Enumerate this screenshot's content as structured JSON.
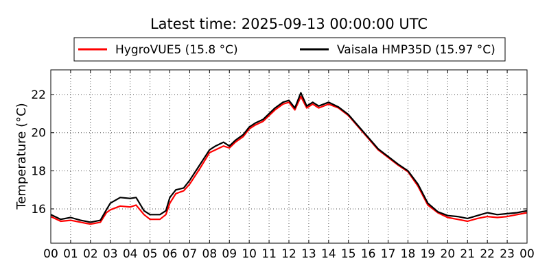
{
  "chart_data": {
    "type": "line",
    "title": "Latest time: 2025-09-13 00:00:00 UTC",
    "xlabel": "",
    "ylabel": "Temperature (°C)",
    "xlim": [
      0,
      24
    ],
    "ylim": [
      14.2,
      23.3
    ],
    "x_ticks": [
      "00",
      "01",
      "02",
      "03",
      "04",
      "05",
      "06",
      "07",
      "08",
      "09",
      "10",
      "11",
      "12",
      "13",
      "14",
      "15",
      "16",
      "17",
      "18",
      "19",
      "20",
      "21",
      "22",
      "23",
      "00"
    ],
    "y_ticks": [
      16,
      18,
      20,
      22
    ],
    "grid": true,
    "legend_position": "top-center",
    "series": [
      {
        "name": "HygroVUE5 (15.8 °C)",
        "color": "#ff0000",
        "x": [
          0,
          0.5,
          1,
          1.5,
          2,
          2.5,
          2.8,
          3,
          3.5,
          4,
          4.3,
          4.7,
          5,
          5.5,
          5.8,
          6,
          6.3,
          6.7,
          7,
          7.5,
          8,
          8.3,
          8.7,
          9,
          9.3,
          9.7,
          10,
          10.3,
          10.7,
          11,
          11.3,
          11.7,
          12,
          12.3,
          12.6,
          12.9,
          13.2,
          13.5,
          14,
          14.5,
          15,
          15.5,
          16,
          16.5,
          17,
          17.5,
          18,
          18.5,
          19,
          19.5,
          20,
          20.5,
          21,
          21.5,
          22,
          22.5,
          23,
          23.5,
          24
        ],
        "y": [
          15.6,
          15.35,
          15.4,
          15.3,
          15.2,
          15.3,
          15.8,
          15.95,
          16.15,
          16.1,
          16.2,
          15.7,
          15.45,
          15.45,
          15.7,
          16.3,
          16.8,
          16.95,
          17.3,
          18.1,
          18.95,
          19.1,
          19.3,
          19.2,
          19.5,
          19.8,
          20.2,
          20.4,
          20.6,
          20.9,
          21.2,
          21.5,
          21.6,
          21.2,
          21.9,
          21.3,
          21.5,
          21.3,
          21.5,
          21.3,
          20.9,
          20.3,
          19.7,
          19.1,
          18.7,
          18.3,
          17.95,
          17.2,
          16.2,
          15.8,
          15.55,
          15.45,
          15.35,
          15.5,
          15.6,
          15.55,
          15.6,
          15.7,
          15.8
        ]
      },
      {
        "name": "Vaisala HMP35D (15.97 °C)",
        "color": "#000000",
        "x": [
          0,
          0.5,
          1,
          1.5,
          2,
          2.5,
          2.8,
          3,
          3.5,
          4,
          4.3,
          4.7,
          5,
          5.5,
          5.8,
          6,
          6.3,
          6.7,
          7,
          7.5,
          8,
          8.3,
          8.7,
          9,
          9.3,
          9.7,
          10,
          10.3,
          10.7,
          11,
          11.3,
          11.7,
          12,
          12.3,
          12.6,
          12.9,
          13.2,
          13.5,
          14,
          14.5,
          15,
          15.5,
          16,
          16.5,
          17,
          17.5,
          18,
          18.5,
          19,
          19.5,
          20,
          20.5,
          21,
          21.5,
          22,
          22.5,
          23,
          23.5,
          24
        ],
        "y": [
          15.7,
          15.45,
          15.55,
          15.4,
          15.3,
          15.4,
          15.95,
          16.3,
          16.6,
          16.55,
          16.6,
          15.9,
          15.7,
          15.7,
          15.9,
          16.6,
          17.0,
          17.1,
          17.5,
          18.3,
          19.1,
          19.3,
          19.5,
          19.3,
          19.6,
          19.9,
          20.3,
          20.5,
          20.7,
          21.0,
          21.3,
          21.6,
          21.7,
          21.3,
          22.1,
          21.4,
          21.6,
          21.4,
          21.6,
          21.35,
          20.95,
          20.35,
          19.75,
          19.15,
          18.75,
          18.35,
          18.0,
          17.3,
          16.3,
          15.85,
          15.65,
          15.6,
          15.5,
          15.65,
          15.8,
          15.7,
          15.75,
          15.8,
          15.9
        ]
      }
    ]
  }
}
